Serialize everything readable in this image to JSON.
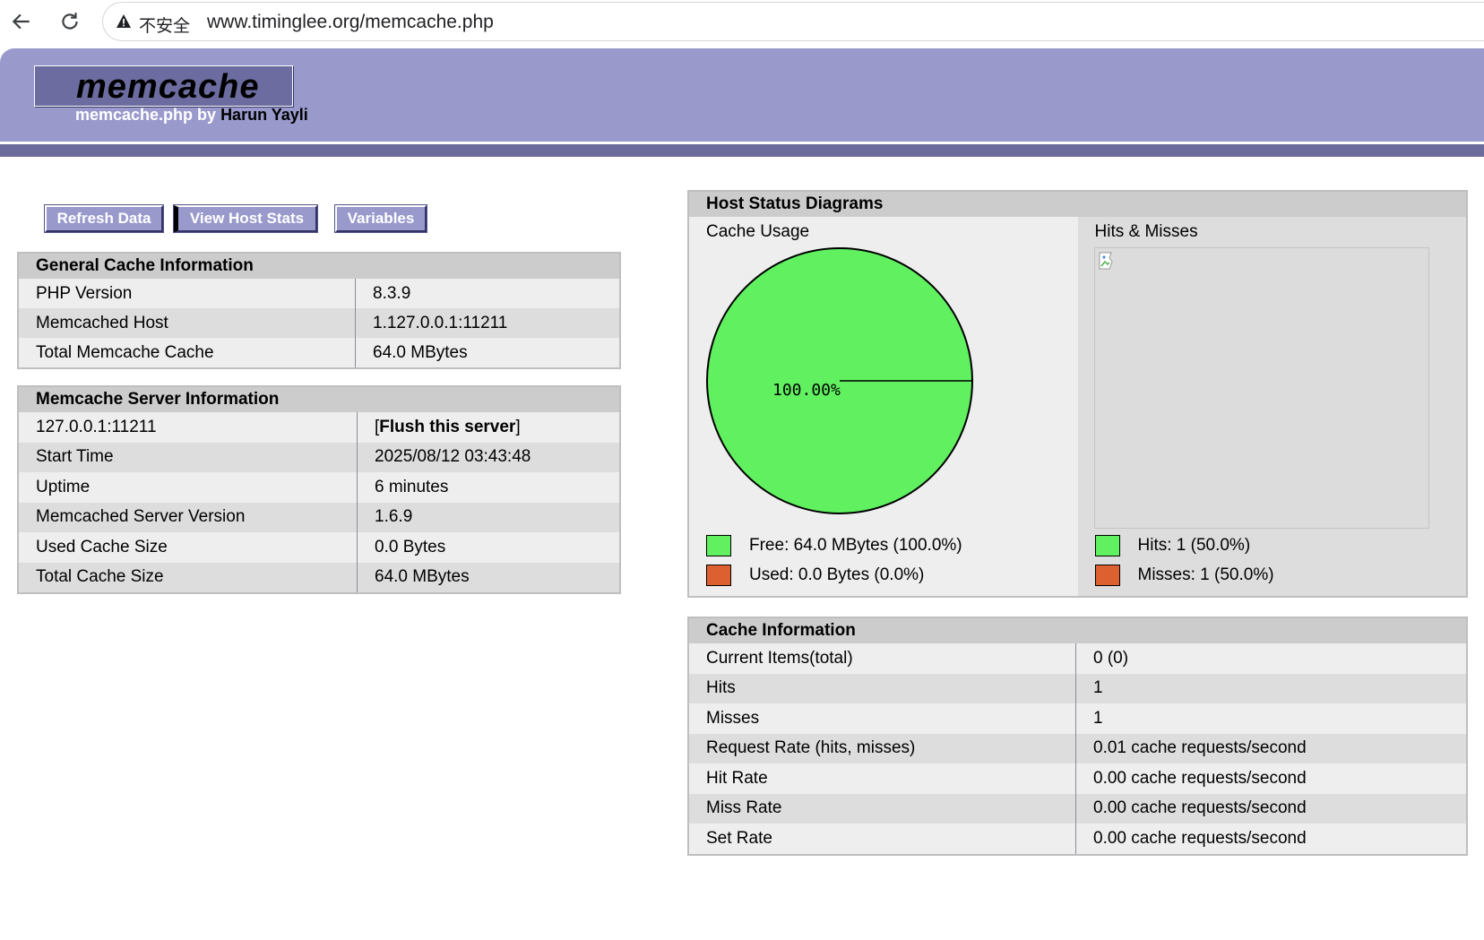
{
  "browser": {
    "security_label": "不安全",
    "url": "www.timinglee.org/memcache.php"
  },
  "header": {
    "logo": "memcache",
    "byline_prefix": "memcache.php by ",
    "author": "Harun Yayli"
  },
  "buttons": {
    "refresh": "Refresh Data",
    "host_stats": "View Host Stats",
    "variables": "Variables"
  },
  "general": {
    "title": "General Cache Information",
    "rows": [
      {
        "key": "PHP Version",
        "value": "8.3.9"
      },
      {
        "key": "Memcached Host",
        "value": "1.127.0.0.1:11211"
      },
      {
        "key": "Total Memcache Cache",
        "value": "64.0 MBytes"
      }
    ]
  },
  "server": {
    "title": "Memcache Server Information",
    "host": "127.0.0.1:11211",
    "flush_open": "[",
    "flush_label": "Flush this server",
    "flush_close": "]",
    "rows": [
      {
        "key": "Start Time",
        "value": "2025/08/12 03:43:48"
      },
      {
        "key": "Uptime",
        "value": "6 minutes"
      },
      {
        "key": "Memcached Server Version",
        "value": "1.6.9"
      },
      {
        "key": "Used Cache Size",
        "value": "0.0 Bytes"
      },
      {
        "key": "Total Cache Size",
        "value": "64.0 MBytes"
      }
    ]
  },
  "diagrams": {
    "title": "Host Status Diagrams",
    "cache_usage_title": "Cache Usage",
    "hits_misses_title": "Hits & Misses",
    "pie_label": "100.00%",
    "free_fraction": 1.0,
    "legend": {
      "free": "Free: 64.0 MBytes (100.0%)",
      "used": "Used: 0.0 Bytes (0.0%)",
      "hits": "Hits: 1 (50.0%)",
      "misses": "Misses: 1 (50.0%)"
    },
    "colors": {
      "free": "#60f060",
      "used": "#dc6030",
      "header_bg": "#9999cc"
    }
  },
  "cache_info": {
    "title": "Cache Information",
    "rows": [
      {
        "key": "Current Items(total)",
        "value": "0 (0)"
      },
      {
        "key": "Hits",
        "value": "1"
      },
      {
        "key": "Misses",
        "value": "1"
      },
      {
        "key": "Request Rate (hits, misses)",
        "value": "0.01 cache requests/second"
      },
      {
        "key": "Hit Rate",
        "value": "0.00 cache requests/second"
      },
      {
        "key": "Miss Rate",
        "value": "0.00 cache requests/second"
      },
      {
        "key": "Set Rate",
        "value": "0.00 cache requests/second"
      }
    ]
  }
}
